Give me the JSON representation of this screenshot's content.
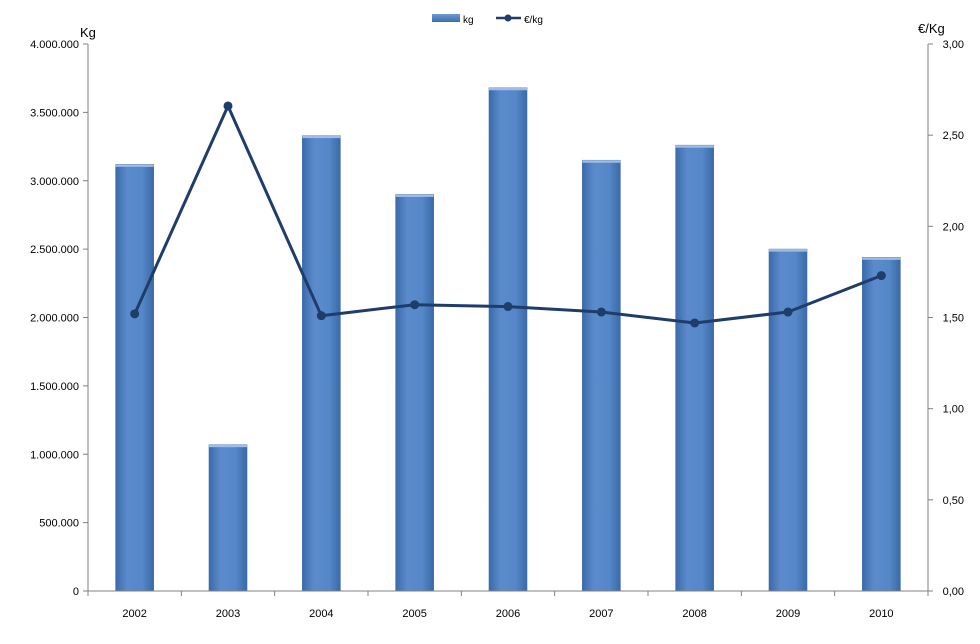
{
  "chart_data": {
    "type": "bar",
    "categories": [
      "2002",
      "2003",
      "2004",
      "2005",
      "2006",
      "2007",
      "2008",
      "2009",
      "2010"
    ],
    "series": [
      {
        "name": "kg",
        "type": "bar",
        "axis": "left",
        "color": "#4F81BD",
        "values": [
          3120000,
          1070000,
          3330000,
          2900000,
          3680000,
          3150000,
          3260000,
          2500000,
          2440000
        ]
      },
      {
        "name": "€/kg",
        "type": "line",
        "axis": "right",
        "color": "#1F3D6B",
        "values": [
          1.52,
          2.66,
          1.51,
          1.57,
          1.56,
          1.53,
          1.47,
          1.53,
          1.73
        ]
      }
    ],
    "y_left": {
      "label": "Kg",
      "lim": [
        0,
        4000000
      ],
      "ticks": [
        "0",
        "500.000",
        "1.000.000",
        "1.500.000",
        "2.000.000",
        "2.500.000",
        "3.000.000",
        "3.500.000",
        "4.000.000"
      ]
    },
    "y_right": {
      "label": "€/Kg",
      "lim": [
        0,
        3
      ],
      "ticks": [
        "0,00",
        "0,50",
        "1,00",
        "1,50",
        "2,00",
        "2,50",
        "3,00"
      ]
    },
    "grid": false,
    "legend": "top-center"
  }
}
